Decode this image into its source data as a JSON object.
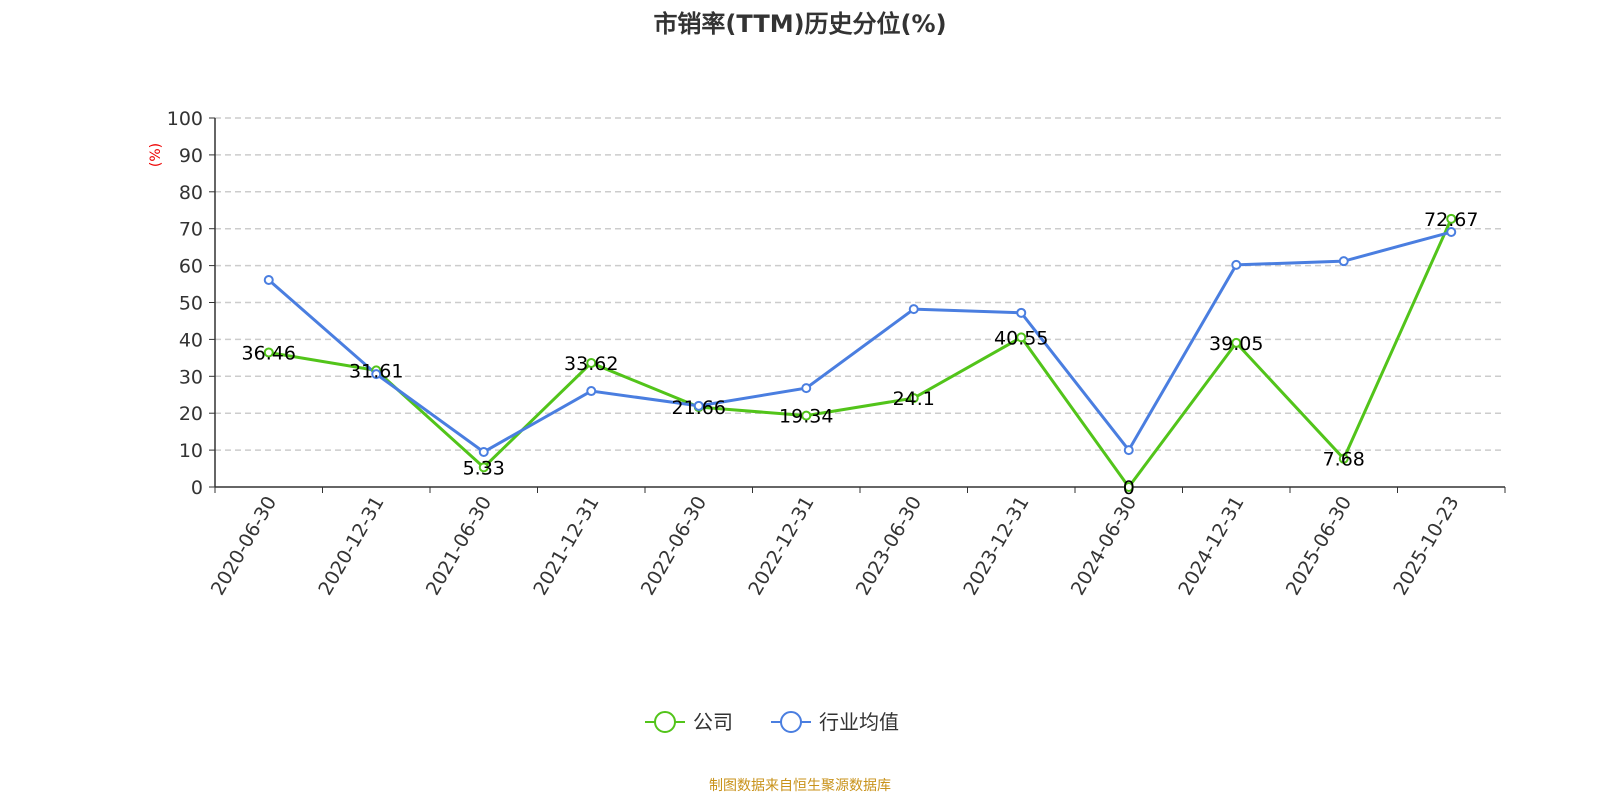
{
  "chart_data": {
    "type": "line",
    "title": "市销率(TTM)历史分位(%)",
    "ylabel": "(%)",
    "ylim": [
      0,
      100
    ],
    "yticks": [
      0,
      10,
      20,
      30,
      40,
      50,
      60,
      70,
      80,
      90,
      100
    ],
    "grid": true,
    "legend_position": "bottom",
    "categories": [
      "2020-06-30",
      "2020-12-31",
      "2021-06-30",
      "2021-12-31",
      "2022-06-30",
      "2022-12-31",
      "2023-06-30",
      "2023-12-31",
      "2024-06-30",
      "2024-12-31",
      "2025-06-30",
      "2025-10-23"
    ],
    "series": [
      {
        "name": "公司",
        "color": "#52c41a",
        "labels": true,
        "values": [
          36.46,
          31.61,
          5.33,
          33.62,
          21.66,
          19.34,
          24.1,
          40.55,
          0,
          39.05,
          7.68,
          72.67
        ]
      },
      {
        "name": "行业均值",
        "color": "#4a7ee0",
        "labels": false,
        "values": [
          56.1,
          30.6,
          9.5,
          26.0,
          22.0,
          26.8,
          48.2,
          47.2,
          10.0,
          60.2,
          61.2,
          69.1
        ]
      }
    ],
    "source": "制图数据来自恒生聚源数据库"
  }
}
